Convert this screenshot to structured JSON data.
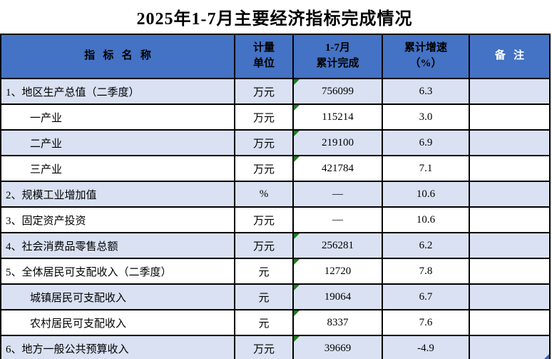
{
  "title": "2025年1-7月主要经济指标完成情况",
  "table": {
    "headers": {
      "indicator": "指   标   名   称",
      "unit": "计量\n单位",
      "completed": "1-7月\n累计完成",
      "growth": "累计增速\n（%）",
      "remark": "备   注"
    },
    "rows": [
      {
        "name": "1、地区生产总值（二季度）",
        "unit": "万元",
        "value": "756099",
        "growth": "6.3",
        "remark": ""
      },
      {
        "name": "一产业",
        "unit": "万元",
        "value": "115214",
        "growth": "3.0",
        "remark": ""
      },
      {
        "name": "二产业",
        "unit": "万元",
        "value": "219100",
        "growth": "6.9",
        "remark": ""
      },
      {
        "name": "三产业",
        "unit": "万元",
        "value": "421784",
        "growth": "7.1",
        "remark": ""
      },
      {
        "name": "2、规模工业增加值",
        "unit": "%",
        "value": "—",
        "growth": "10.6",
        "remark": ""
      },
      {
        "name": "3、固定资产投资",
        "unit": "万元",
        "value": "—",
        "growth": "10.6",
        "remark": ""
      },
      {
        "name": "4、社会消费品零售总额",
        "unit": "万元",
        "value": "256281",
        "growth": "6.2",
        "remark": ""
      },
      {
        "name": "5、全体居民可支配收入（二季度）",
        "unit": "元",
        "value": "12720",
        "growth": "7.8",
        "remark": ""
      },
      {
        "name": "城镇居民可支配收入",
        "unit": "元",
        "value": "19064",
        "growth": "6.7",
        "remark": ""
      },
      {
        "name": "农村居民可支配收入",
        "unit": "元",
        "value": "8337",
        "growth": "7.6",
        "remark": ""
      },
      {
        "name": "6、地方一般公共预算收入",
        "unit": "万元",
        "value": "39669",
        "growth": "-4.9",
        "remark": ""
      }
    ]
  },
  "colors": {
    "header_bg": "#4472C4",
    "alt_row_bg": "#D9E1F2",
    "header_remark_text": "#FFFFFF",
    "border": "#000000",
    "cell_flag_green": "#1E7B1E",
    "fill_handle_blue": "#4262A8"
  }
}
